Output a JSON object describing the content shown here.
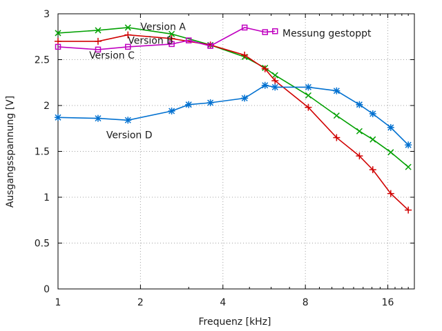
{
  "chart_data": {
    "type": "line",
    "xlabel": "Frequenz [kHz]",
    "ylabel": "Ausgangsspannung [V]",
    "x_scale": "log2",
    "xlim": [
      1,
      20
    ],
    "ylim": [
      0,
      3
    ],
    "x_ticks": [
      1,
      2,
      4,
      8,
      16
    ],
    "y_ticks": [
      0,
      0.5,
      1,
      1.5,
      2,
      2.5,
      3
    ],
    "y_tick_labels": [
      "0",
      "0.5",
      "1",
      "1.5",
      "2",
      "2.5",
      "3"
    ],
    "grid": true,
    "series": [
      {
        "name": "Version A",
        "color": "#00a000",
        "marker": "x",
        "x": [
          1,
          1.4,
          1.8,
          2.6,
          3.6,
          4.8,
          5.7,
          6.2,
          8.2,
          10.4,
          12.6,
          14.1,
          16.4,
          19.0
        ],
        "y": [
          2.79,
          2.82,
          2.85,
          2.78,
          2.66,
          2.53,
          2.41,
          2.33,
          2.11,
          1.89,
          1.72,
          1.63,
          1.49,
          1.33
        ]
      },
      {
        "name": "Version B",
        "color": "#d00000",
        "marker": "+",
        "x": [
          1,
          1.4,
          1.8,
          2.6,
          3.6,
          4.8,
          5.7,
          6.2,
          8.2,
          10.4,
          12.6,
          14.1,
          16.4,
          19.0
        ],
        "y": [
          2.7,
          2.7,
          2.77,
          2.73,
          2.66,
          2.55,
          2.4,
          2.27,
          1.98,
          1.65,
          1.45,
          1.3,
          1.04,
          0.86
        ]
      },
      {
        "name": "Version C",
        "color": "#c000c0",
        "marker": "square",
        "x": [
          1,
          1.4,
          1.8,
          2.6,
          3.0,
          3.6,
          4.8,
          5.7,
          6.2
        ],
        "y": [
          2.64,
          2.61,
          2.64,
          2.67,
          2.71,
          2.65,
          2.85,
          2.8,
          2.81
        ]
      },
      {
        "name": "Version D",
        "color": "#0070d0",
        "marker": "asterisk",
        "x": [
          1,
          1.4,
          1.8,
          2.6,
          3.0,
          3.6,
          4.8,
          5.7,
          6.2,
          8.2,
          10.4,
          12.6,
          14.1,
          16.4,
          19.0
        ],
        "y": [
          1.87,
          1.86,
          1.84,
          1.94,
          2.01,
          2.03,
          2.08,
          2.22,
          2.2,
          2.2,
          2.16,
          2.01,
          1.91,
          1.76,
          1.57
        ]
      }
    ],
    "annotations": [
      {
        "id": "label-a",
        "text": "Version A",
        "x": 2.0,
        "y": 2.86
      },
      {
        "id": "label-b",
        "text": "Version B",
        "x": 1.8,
        "y": 2.71
      },
      {
        "id": "label-c",
        "text": "Version C",
        "x": 1.3,
        "y": 2.55
      },
      {
        "id": "label-d",
        "text": "Version D",
        "x": 1.5,
        "y": 1.68
      },
      {
        "id": "label-stopped",
        "text": "Messung gestoppt",
        "x": 6.6,
        "y": 2.79
      }
    ]
  }
}
